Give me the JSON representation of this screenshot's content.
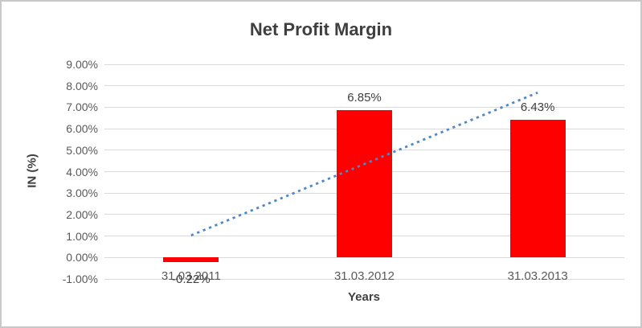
{
  "chart_data": {
    "type": "bar",
    "title": "Net Profit Margin",
    "xlabel": "Years",
    "ylabel": "IN (%)",
    "categories": [
      "31.03.2011",
      "31.03.2012",
      "31.03.2013"
    ],
    "values": [
      -0.22,
      6.85,
      6.43
    ],
    "data_labels": [
      "-0.22%",
      "6.85%",
      "6.43%"
    ],
    "ylim": [
      -1,
      9
    ],
    "ytick_step": 1,
    "ytick_labels": [
      "9.00%",
      "8.00%",
      "7.00%",
      "6.00%",
      "5.00%",
      "4.00%",
      "3.00%",
      "2.00%",
      "1.00%",
      "0.00%",
      "-1.00%"
    ],
    "grid": true,
    "legend": "none",
    "bar_color": "#FF0000",
    "trendline": {
      "type": "linear",
      "style": "dotted",
      "color": "#4E87C7",
      "start_value": 1.03,
      "end_value": 7.68
    }
  }
}
